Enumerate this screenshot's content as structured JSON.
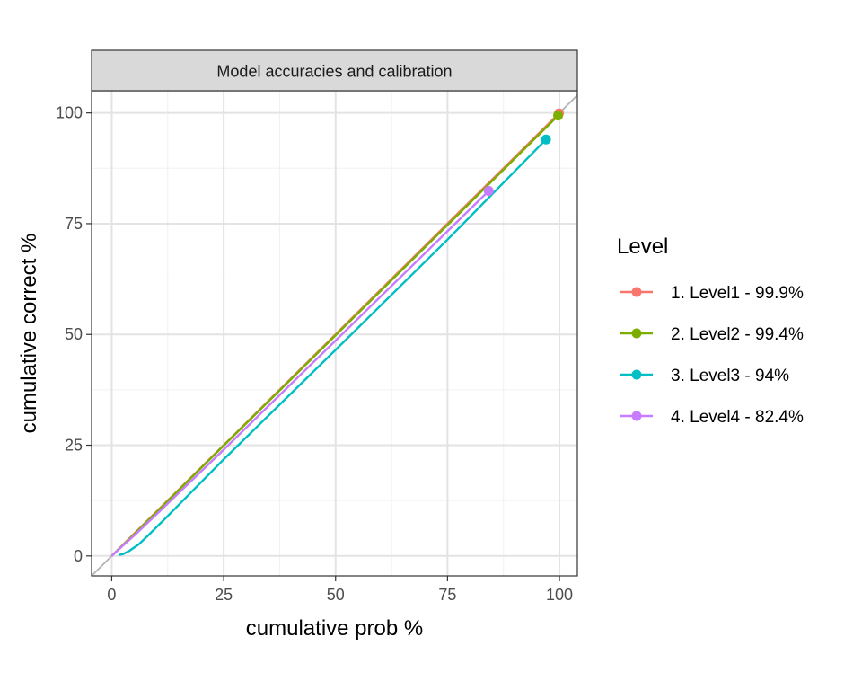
{
  "chart_data": {
    "type": "line",
    "title": "Model accuracies and calibration",
    "xlabel": "cumulative prob %",
    "ylabel": "cumulative correct %",
    "xlim": [
      -4.5,
      104
    ],
    "ylim": [
      -4.5,
      105
    ],
    "x_ticks": [
      0,
      25,
      50,
      75,
      100
    ],
    "y_ticks": [
      0,
      25,
      50,
      75,
      100
    ],
    "grid": true,
    "reference_line": "y = x",
    "legend": {
      "title": "Level",
      "placement": "right"
    },
    "series": [
      {
        "name": "1. Level1 - 99.9%",
        "color": "#F8766D",
        "x": [
          0,
          25,
          50,
          75,
          99.9
        ],
        "y": [
          0,
          25,
          50,
          75,
          99.9
        ],
        "endpoint": [
          99.9,
          99.9
        ]
      },
      {
        "name": "2. Level2 - 99.4%",
        "color": "#7CAE00",
        "x": [
          0,
          5,
          25,
          50,
          75,
          99.7
        ],
        "y": [
          0,
          4.9,
          24.9,
          49.8,
          74.7,
          99.4
        ],
        "endpoint": [
          99.7,
          99.4
        ]
      },
      {
        "name": "3. Level3 - 94%",
        "color": "#00BFC4",
        "x": [
          1.5,
          2.5,
          4,
          6,
          8,
          12,
          25,
          50,
          75,
          97
        ],
        "y": [
          0.2,
          0.4,
          1.2,
          2.6,
          4.5,
          8.5,
          21.8,
          46.5,
          71.4,
          94
        ],
        "endpoint": [
          97,
          94
        ]
      },
      {
        "name": "4. Level4 - 82.4%",
        "color": "#C77CFF",
        "x": [
          0,
          3,
          5,
          10,
          25,
          50,
          84.2
        ],
        "y": [
          0,
          2.8,
          4.6,
          9.4,
          24,
          48.6,
          82.4
        ],
        "endpoint": [
          84.2,
          82.4
        ]
      }
    ]
  }
}
